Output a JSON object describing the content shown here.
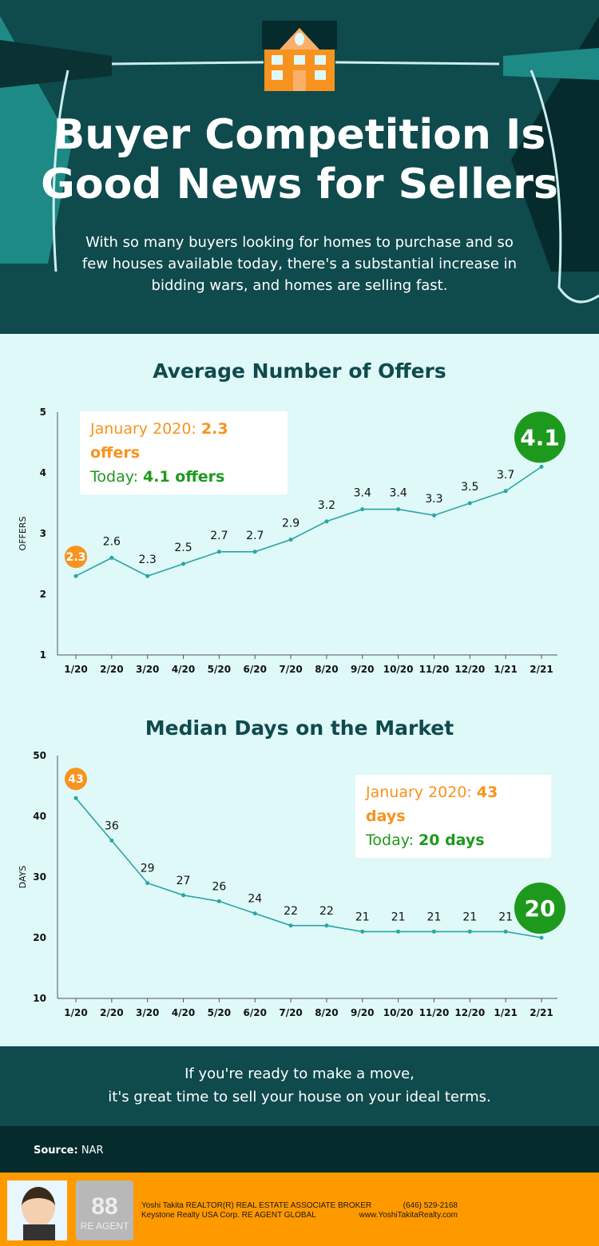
{
  "header": {
    "title_line1": "Buyer Competition Is",
    "title_line2": "Good News for Sellers",
    "subtitle": "With so many buyers looking for homes to purchase and so few houses available today, there's a substantial increase in bidding wars, and homes are selling fast."
  },
  "colors": {
    "header_bg": "#0f4a4d",
    "chart_bg": "#dff8f8",
    "line": "#2aa5a5",
    "orange": "#f7931e",
    "green": "#1d9a1d",
    "footer": "#ff9900"
  },
  "chart_data": [
    {
      "type": "line",
      "title": "Average Number of Offers",
      "ylabel": "OFFERS",
      "ylim": [
        1,
        5
      ],
      "yticks": [
        "1",
        "2",
        "3",
        "4",
        "5"
      ],
      "categories": [
        "1/20",
        "2/20",
        "3/20",
        "4/20",
        "5/20",
        "6/20",
        "7/20",
        "8/20",
        "9/20",
        "10/20",
        "11/20",
        "12/20",
        "1/21",
        "2/21"
      ],
      "values": [
        2.3,
        2.6,
        2.3,
        2.5,
        2.7,
        2.7,
        2.9,
        3.2,
        3.4,
        3.4,
        3.3,
        3.5,
        3.7,
        4.1
      ],
      "labels": [
        "2.3",
        "2.6",
        "2.3",
        "2.5",
        "2.7",
        "2.7",
        "2.9",
        "3.2",
        "3.4",
        "3.4",
        "3.3",
        "3.5",
        "3.7",
        "4.1"
      ],
      "callout": {
        "start_label": "January 2020: ",
        "start_value": "2.3 offers",
        "end_label": "Today: ",
        "end_value": "4.1 offers"
      }
    },
    {
      "type": "line",
      "title": "Median Days on the Market",
      "ylabel": "DAYS",
      "ylim": [
        10,
        50
      ],
      "yticks": [
        "10",
        "20",
        "30",
        "40",
        "50"
      ],
      "categories": [
        "1/20",
        "2/20",
        "3/20",
        "4/20",
        "5/20",
        "6/20",
        "7/20",
        "8/20",
        "9/20",
        "10/20",
        "11/20",
        "12/20",
        "1/21",
        "2/21"
      ],
      "values": [
        43,
        36,
        29,
        27,
        26,
        24,
        22,
        22,
        21,
        21,
        21,
        21,
        21,
        20
      ],
      "labels": [
        "43",
        "36",
        "29",
        "27",
        "26",
        "24",
        "22",
        "22",
        "21",
        "21",
        "21",
        "21",
        "21",
        "20"
      ],
      "callout": {
        "start_label": "January 2020: ",
        "start_value": "43 days",
        "end_label": "Today: ",
        "end_value": "20 days"
      }
    }
  ],
  "cta": {
    "line1": "If you're ready to make a move,",
    "line2": "it's great time to sell your house on your ideal terms."
  },
  "source": {
    "label": "Source:",
    "value": "NAR"
  },
  "footer": {
    "line1": "Yoshi Takita REALTOR(R) REAL ESTATE ASSOCIATE BROKER",
    "line2": "Keystone Realty USA Corp.   RE AGENT GLOBAL",
    "phone": "(646) 529-2168",
    "website": "www.YoshiTakitaRealty.com",
    "logo_text": "RE AGENT"
  }
}
